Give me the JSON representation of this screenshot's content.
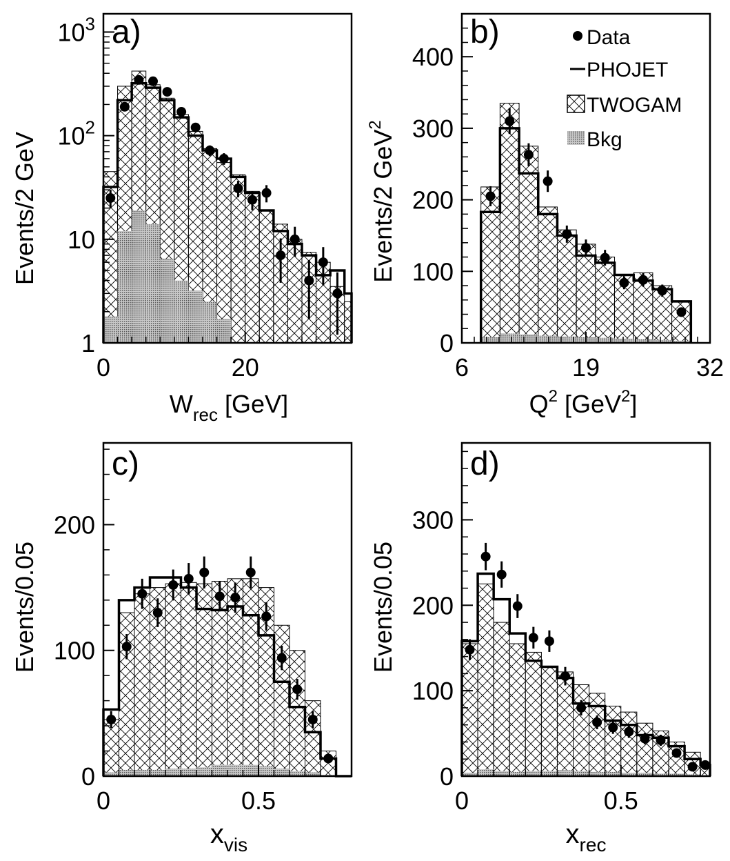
{
  "legend": {
    "data": "Data",
    "phojet": "PHOJET",
    "twogam": "TWOGAM",
    "bkg": "Bkg"
  },
  "chart_data": [
    {
      "panel": "a)",
      "type": "histogram",
      "yscale": "log",
      "ylabel": "Events/2 GeV",
      "xlabel": "W",
      "xlabel_sub": "rec",
      "xlabel_unit": "[GeV]",
      "xlim": [
        0,
        35
      ],
      "ylim": [
        1,
        1500
      ],
      "yticks": [
        1,
        10,
        100,
        1000
      ],
      "ytick_labels": [
        "1",
        "10",
        "10 2",
        "10 3"
      ],
      "xticks": [
        0,
        20
      ],
      "xtick_labels": [
        "0",
        "20"
      ],
      "bin_edges": [
        0,
        2,
        4,
        6,
        8,
        10,
        12,
        14,
        16,
        18,
        20,
        22,
        24,
        26,
        28,
        30,
        32,
        34,
        35
      ],
      "twogam": [
        45,
        300,
        420,
        310,
        230,
        160,
        110,
        75,
        55,
        42,
        29,
        19,
        14,
        10,
        7.5,
        6,
        3.5,
        2.5
      ],
      "phojet": [
        32,
        220,
        320,
        290,
        220,
        150,
        100,
        72,
        60,
        40,
        28,
        19,
        12,
        9,
        7,
        4.5,
        5,
        3
      ],
      "bkg": [
        1.8,
        12,
        19,
        14,
        6.5,
        4,
        3.2,
        2.5,
        1.7,
        1,
        1,
        1,
        1,
        1,
        1,
        1,
        1,
        1
      ],
      "data_points": [
        {
          "x": 1,
          "y": 25,
          "err": 5
        },
        {
          "x": 3,
          "y": 190,
          "err": 14
        },
        {
          "x": 5,
          "y": 345,
          "err": 19
        },
        {
          "x": 7,
          "y": 335,
          "err": 18
        },
        {
          "x": 9,
          "y": 265,
          "err": 16
        },
        {
          "x": 11,
          "y": 170,
          "err": 13
        },
        {
          "x": 13,
          "y": 120,
          "err": 11
        },
        {
          "x": 15,
          "y": 72,
          "err": 8.5
        },
        {
          "x": 17,
          "y": 60,
          "err": 7.7
        },
        {
          "x": 19,
          "y": 31,
          "err": 5.6
        },
        {
          "x": 21,
          "y": 24,
          "err": 4.9
        },
        {
          "x": 23,
          "y": 28,
          "err": 5.3
        },
        {
          "x": 25,
          "y": 7,
          "err": 3.2
        },
        {
          "x": 27,
          "y": 10,
          "err": 3.2
        },
        {
          "x": 29,
          "y": 4,
          "err": 2.3
        },
        {
          "x": 31,
          "y": 6,
          "err": 2.4
        },
        {
          "x": 33,
          "y": 3,
          "err": 1.8
        }
      ]
    },
    {
      "panel": "b)",
      "type": "histogram",
      "yscale": "linear",
      "ylabel": "Events/2 GeV",
      "ylabel_sup": "2",
      "xlabel": "Q",
      "xlabel_sup": "2",
      "xlabel_unit_open": "[GeV",
      "xlabel_unit_sup": "2",
      "xlabel_unit_close": "]",
      "xlim": [
        6,
        32
      ],
      "ylim": [
        0,
        460
      ],
      "yticks": [
        0,
        100,
        200,
        300,
        400
      ],
      "ytick_labels": [
        "0",
        "100",
        "200",
        "300",
        "400"
      ],
      "xticks": [
        6,
        19,
        32
      ],
      "xtick_labels": [
        "6",
        "19",
        "32"
      ],
      "bin_edges": [
        8,
        10,
        12,
        14,
        16,
        18,
        20,
        22,
        24,
        26,
        28,
        30
      ],
      "twogam": [
        218,
        335,
        275,
        190,
        158,
        138,
        120,
        95,
        98,
        80,
        58
      ],
      "phojet": [
        183,
        300,
        237,
        180,
        150,
        122,
        112,
        95,
        87,
        75,
        58
      ],
      "bkg": [
        8,
        13,
        12,
        10,
        9,
        8,
        7,
        6,
        5,
        4,
        3
      ],
      "data_points": [
        {
          "x": 9,
          "y": 205,
          "err": 14
        },
        {
          "x": 11,
          "y": 310,
          "err": 18
        },
        {
          "x": 13,
          "y": 263,
          "err": 16
        },
        {
          "x": 15,
          "y": 226,
          "err": 15
        },
        {
          "x": 17,
          "y": 152,
          "err": 12
        },
        {
          "x": 19,
          "y": 133,
          "err": 11.5
        },
        {
          "x": 21,
          "y": 119,
          "err": 11
        },
        {
          "x": 23,
          "y": 84,
          "err": 9
        },
        {
          "x": 25,
          "y": 88,
          "err": 9.4
        },
        {
          "x": 27,
          "y": 73,
          "err": 8.5
        },
        {
          "x": 29,
          "y": 43,
          "err": 6.5
        }
      ]
    },
    {
      "panel": "c)",
      "type": "histogram",
      "yscale": "linear",
      "ylabel": "Events/0.05",
      "xlabel": "x",
      "xlabel_sub": "vis",
      "xlim": [
        0,
        0.8
      ],
      "ylim": [
        0,
        265
      ],
      "yticks": [
        0,
        100,
        200
      ],
      "ytick_labels": [
        "0",
        "100",
        "200"
      ],
      "xticks": [
        0,
        0.5
      ],
      "xtick_labels": [
        "0",
        "0.5"
      ],
      "bin_edges": [
        0,
        0.05,
        0.1,
        0.15,
        0.2,
        0.25,
        0.3,
        0.35,
        0.4,
        0.45,
        0.5,
        0.55,
        0.6,
        0.65,
        0.7,
        0.75,
        0.8
      ],
      "twogam": [
        45,
        130,
        145,
        150,
        153,
        154,
        153,
        155,
        157,
        157,
        150,
        120,
        100,
        60,
        20,
        0
      ],
      "phojet": [
        53,
        140,
        150,
        158,
        158,
        150,
        133,
        132,
        135,
        128,
        112,
        75,
        55,
        35,
        14,
        0
      ],
      "bkg": [
        3,
        5,
        5,
        5,
        6,
        6,
        7,
        9,
        9,
        9,
        8,
        6,
        4,
        3,
        1,
        0
      ],
      "data_points": [
        {
          "x": 0.025,
          "y": 45,
          "err": 6.7
        },
        {
          "x": 0.075,
          "y": 103,
          "err": 10
        },
        {
          "x": 0.125,
          "y": 145,
          "err": 12
        },
        {
          "x": 0.175,
          "y": 130,
          "err": 11.4
        },
        {
          "x": 0.225,
          "y": 152,
          "err": 12.3
        },
        {
          "x": 0.275,
          "y": 157,
          "err": 12.5
        },
        {
          "x": 0.325,
          "y": 162,
          "err": 12.7
        },
        {
          "x": 0.375,
          "y": 143,
          "err": 12
        },
        {
          "x": 0.425,
          "y": 142,
          "err": 12
        },
        {
          "x": 0.475,
          "y": 162,
          "err": 12.7
        },
        {
          "x": 0.525,
          "y": 127,
          "err": 11.3
        },
        {
          "x": 0.575,
          "y": 94,
          "err": 9.7
        },
        {
          "x": 0.625,
          "y": 69,
          "err": 8.3
        },
        {
          "x": 0.675,
          "y": 45,
          "err": 6.7
        },
        {
          "x": 0.725,
          "y": 14,
          "err": 3.7
        }
      ]
    },
    {
      "panel": "d)",
      "type": "histogram",
      "yscale": "linear",
      "ylabel": "Events/0.05",
      "xlabel": "x",
      "xlabel_sub": "rec",
      "xlim": [
        0,
        0.78
      ],
      "ylim": [
        0,
        390
      ],
      "yticks": [
        0,
        100,
        200,
        300
      ],
      "ytick_labels": [
        "0",
        "100",
        "200",
        "300"
      ],
      "xticks": [
        0,
        0.5
      ],
      "xtick_labels": [
        "0",
        "0.5"
      ],
      "bin_edges": [
        0,
        0.05,
        0.1,
        0.15,
        0.2,
        0.25,
        0.3,
        0.35,
        0.4,
        0.45,
        0.5,
        0.55,
        0.6,
        0.65,
        0.7,
        0.75,
        0.78
      ],
      "twogam": [
        155,
        225,
        180,
        155,
        145,
        128,
        122,
        107,
        97,
        82,
        75,
        62,
        53,
        40,
        28,
        15
      ],
      "phojet": [
        158,
        237,
        207,
        167,
        135,
        128,
        115,
        85,
        82,
        65,
        60,
        48,
        45,
        35,
        20,
        13
      ],
      "bkg": [
        4,
        8,
        6,
        5,
        6,
        6,
        7,
        6,
        5,
        5,
        4,
        4,
        3,
        3,
        2,
        1
      ],
      "data_points": [
        {
          "x": 0.025,
          "y": 148,
          "err": 12.2
        },
        {
          "x": 0.075,
          "y": 257,
          "err": 16
        },
        {
          "x": 0.125,
          "y": 236,
          "err": 15.4
        },
        {
          "x": 0.175,
          "y": 199,
          "err": 14
        },
        {
          "x": 0.225,
          "y": 162,
          "err": 12.7
        },
        {
          "x": 0.275,
          "y": 158,
          "err": 12.6
        },
        {
          "x": 0.325,
          "y": 117,
          "err": 10.8
        },
        {
          "x": 0.375,
          "y": 80,
          "err": 9
        },
        {
          "x": 0.425,
          "y": 63,
          "err": 8
        },
        {
          "x": 0.475,
          "y": 57,
          "err": 7.5
        },
        {
          "x": 0.525,
          "y": 52,
          "err": 7.2
        },
        {
          "x": 0.575,
          "y": 44,
          "err": 6.6
        },
        {
          "x": 0.625,
          "y": 42,
          "err": 6.5
        },
        {
          "x": 0.675,
          "y": 27,
          "err": 5.2
        },
        {
          "x": 0.725,
          "y": 11,
          "err": 3.3
        },
        {
          "x": 0.765,
          "y": 13,
          "err": 3.6
        }
      ]
    }
  ]
}
